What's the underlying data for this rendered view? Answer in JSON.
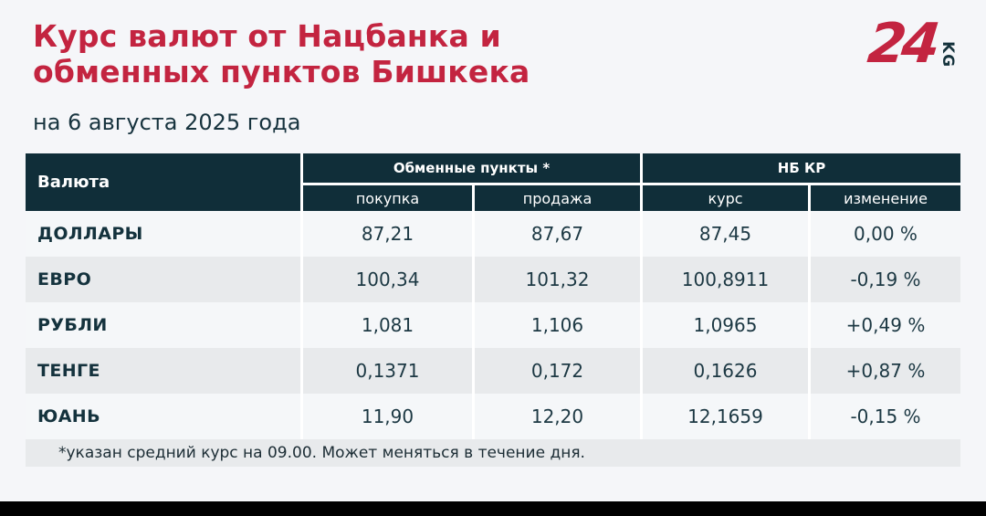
{
  "page": {
    "title_lines": [
      "Курс валют от Нацбанка и",
      "обменных пунктов Бишкека"
    ],
    "date": "на 6 августа 2025 года",
    "footnote": "*указан средний курс на 09.00. Может меняться в течение дня."
  },
  "logo": {
    "number": "24",
    "suffix": "KG"
  },
  "colors": {
    "accent_red": "#c32440",
    "header_teal": "#102e39",
    "row_alt_gray": "#e8eaec",
    "page_bg": "#f5f6f9",
    "text_teal": "#1c3843",
    "bottom_bar": "#000000"
  },
  "table": {
    "headers": {
      "currency": "Валюта",
      "group_exchange": "Обменные пункты *",
      "group_nbkr": "НБ КР",
      "buy": "покупка",
      "sell": "продажа",
      "rate": "курс",
      "change": "изменение"
    },
    "rows": [
      {
        "currency": "ДОЛЛАРЫ",
        "buy": "87,21",
        "sell": "87,67",
        "rate": "87,45",
        "change": "0,00 %"
      },
      {
        "currency": "ЕВРО",
        "buy": "100,34",
        "sell": "101,32",
        "rate": "100,8911",
        "change": "-0,19 %"
      },
      {
        "currency": "РУБЛИ",
        "buy": "1,081",
        "sell": "1,106",
        "rate": "1,0965",
        "change": "+0,49 %"
      },
      {
        "currency": "ТЕНГЕ",
        "buy": "0,1371",
        "sell": "0,172",
        "rate": "0,1626",
        "change": "+0,87 %"
      },
      {
        "currency": "ЮАНЬ",
        "buy": "11,90",
        "sell": "12,20",
        "rate": "12,1659",
        "change": "-0,15 %"
      }
    ]
  },
  "chart_data": {
    "type": "table",
    "title": "Курс валют от Нацбанка и обменных пунктов Бишкека",
    "subtitle": "на 6 августа 2025 года",
    "column_groups": [
      "Валюта",
      "Обменные пункты *",
      "Обменные пункты *",
      "НБ КР",
      "НБ КР"
    ],
    "columns": [
      "Валюта",
      "покупка",
      "продажа",
      "курс",
      "изменение"
    ],
    "rows": [
      [
        "ДОЛЛАРЫ",
        "87,21",
        "87,67",
        "87,45",
        "0,00 %"
      ],
      [
        "ЕВРО",
        "100,34",
        "101,32",
        "100,8911",
        "-0,19 %"
      ],
      [
        "РУБЛИ",
        "1,081",
        "1,106",
        "1,0965",
        "+0,49 %"
      ],
      [
        "ТЕНГЕ",
        "0,1371",
        "0,172",
        "0,1626",
        "+0,87 %"
      ],
      [
        "ЮАНЬ",
        "11,90",
        "12,20",
        "12,1659",
        "-0,15 %"
      ]
    ],
    "footnote": "*указан средний курс на 09.00. Может меняться в течение дня."
  }
}
